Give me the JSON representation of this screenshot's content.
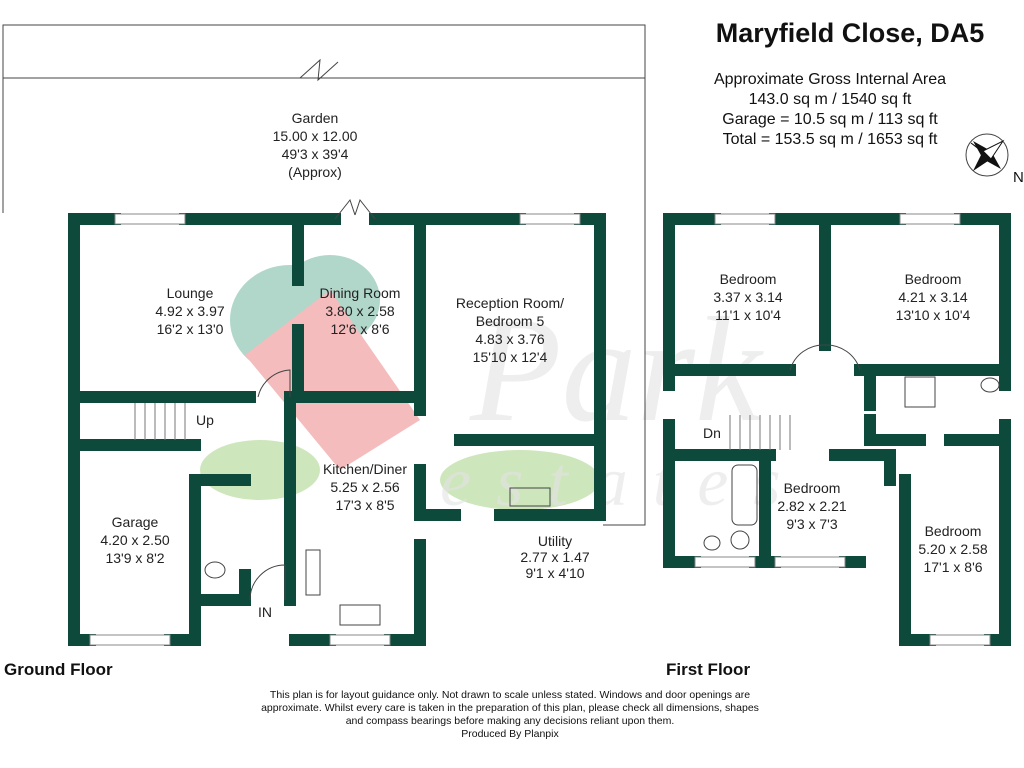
{
  "header": {
    "title": "Maryfield Close, DA5",
    "area_lines": [
      "Approximate Gross Internal Area",
      "143.0 sq m / 1540 sq ft",
      "Garage = 10.5 sq m / 113 sq ft",
      "Total = 153.5 sq m / 1653 sq ft"
    ],
    "compass_label": "N"
  },
  "watermark": {
    "brand": "Park estates",
    "colors": {
      "tree": "#8fc7b5",
      "roof": "#f0a0a0",
      "leaf": "#b9dca0"
    }
  },
  "wall_color": "#0d4a3c",
  "ground_floor": {
    "label": "Ground Floor",
    "rooms": {
      "garden": [
        "Garden",
        "15.00 x 12.00",
        "49'3 x 39'4",
        "(Approx)"
      ],
      "lounge": [
        "Lounge",
        "4.92 x 3.97",
        "16'2 x 13'0"
      ],
      "dining": [
        "Dining Room",
        "3.80 x 2.58",
        "12'6 x 8'6"
      ],
      "reception": [
        "Reception Room/",
        "Bedroom 5",
        "4.83 x 3.76",
        "15'10 x 12'4"
      ],
      "kitchen": [
        "Kitchen/Diner",
        "5.25 x 2.56",
        "17'3 x 8'5"
      ],
      "garage": [
        "Garage",
        "4.20 x 2.50",
        "13'9 x 8'2"
      ],
      "utility": [
        "Utility",
        "2.77 x 1.47",
        "9'1 x 4'10"
      ]
    },
    "stairs_label": "Up",
    "entrance_label": "IN"
  },
  "first_floor": {
    "label": "First Floor",
    "rooms": {
      "bedroom1": [
        "Bedroom",
        "3.37 x 3.14",
        "11'1 x 10'4"
      ],
      "bedroom2": [
        "Bedroom",
        "4.21 x 3.14",
        "13'10 x 10'4"
      ],
      "bedroom3": [
        "Bedroom",
        "2.82 x 2.21",
        "9'3 x 7'3"
      ],
      "bedroom4": [
        "Bedroom",
        "5.20 x 2.58",
        "17'1 x 8'6"
      ]
    },
    "stairs_label": "Dn"
  },
  "footer": {
    "disclaimer": "This plan is for layout guidance only. Not drawn to scale unless stated. Windows and door openings are approximate. Whilst every care is taken in the preparation of this plan, please check all dimensions, shapes and compass bearings before making any decisions reliant upon them.",
    "credit": "Produced By Planpix"
  }
}
